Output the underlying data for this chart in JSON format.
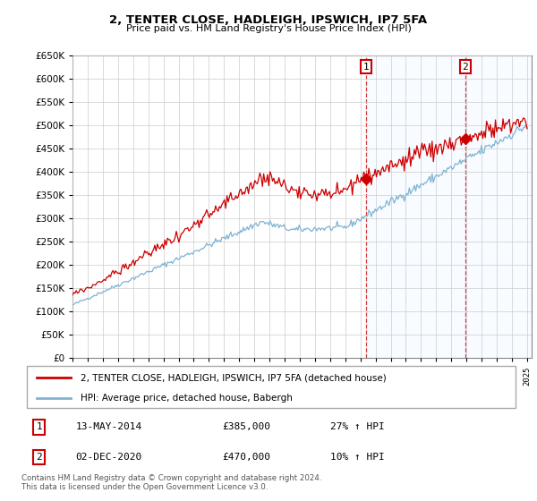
{
  "title": "2, TENTER CLOSE, HADLEIGH, IPSWICH, IP7 5FA",
  "subtitle": "Price paid vs. HM Land Registry's House Price Index (HPI)",
  "legend_line1": "2, TENTER CLOSE, HADLEIGH, IPSWICH, IP7 5FA (detached house)",
  "legend_line2": "HPI: Average price, detached house, Babergh",
  "sale1_date": "13-MAY-2014",
  "sale1_price": "£385,000",
  "sale1_hpi": "27% ↑ HPI",
  "sale1_year": 2014.37,
  "sale1_value": 385000,
  "sale2_date": "02-DEC-2020",
  "sale2_price": "£470,000",
  "sale2_hpi": "10% ↑ HPI",
  "sale2_year": 2020.92,
  "sale2_value": 470000,
  "property_color": "#cc0000",
  "hpi_color": "#7fb3d3",
  "marker_color": "#cc0000",
  "vline_color": "#cc0000",
  "background_color": "#ffffff",
  "grid_color": "#cccccc",
  "shade_color": "#ddeeff",
  "ylim": [
    0,
    650000
  ],
  "yticks": [
    0,
    50000,
    100000,
    150000,
    200000,
    250000,
    300000,
    350000,
    400000,
    450000,
    500000,
    550000,
    600000,
    650000
  ],
  "xlim_start": 1995.0,
  "xlim_end": 2025.3,
  "footnote1": "Contains HM Land Registry data © Crown copyright and database right 2024.",
  "footnote2": "This data is licensed under the Open Government Licence v3.0."
}
